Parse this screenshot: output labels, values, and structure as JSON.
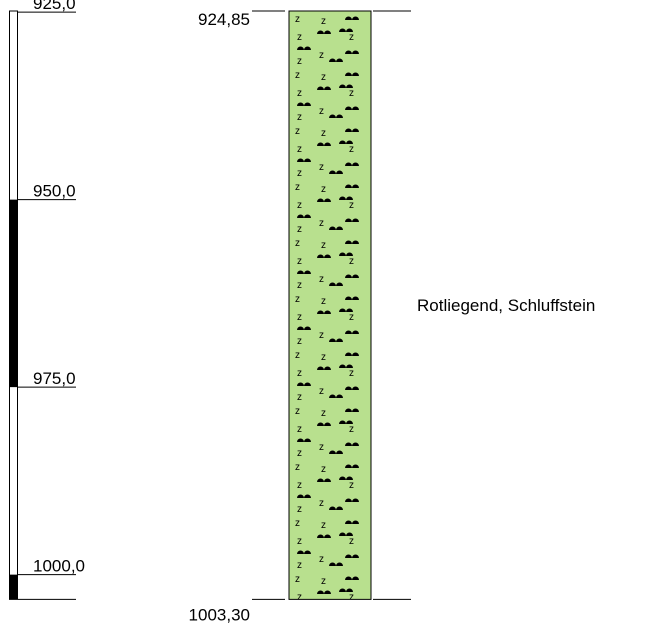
{
  "depth_scale": {
    "ticks": [
      {
        "label": "925,0",
        "depth": 925.0
      },
      {
        "label": "950,0",
        "depth": 950.0
      },
      {
        "label": "975,0",
        "depth": 975.0
      },
      {
        "label": "1000,0",
        "depth": 1000.0
      }
    ],
    "filled_intervals": [
      {
        "from": 950.0,
        "to": 975.0
      },
      {
        "from": 1000.0,
        "to": 1003.3
      }
    ]
  },
  "layers": [
    {
      "top_label": "924,85",
      "bottom_label": "1003,30",
      "top": 924.85,
      "bottom": 1003.3,
      "description": "Rotliegend, Schluffstein",
      "fill_color": "#b8e08e",
      "pattern_symbol": "z"
    }
  ]
}
